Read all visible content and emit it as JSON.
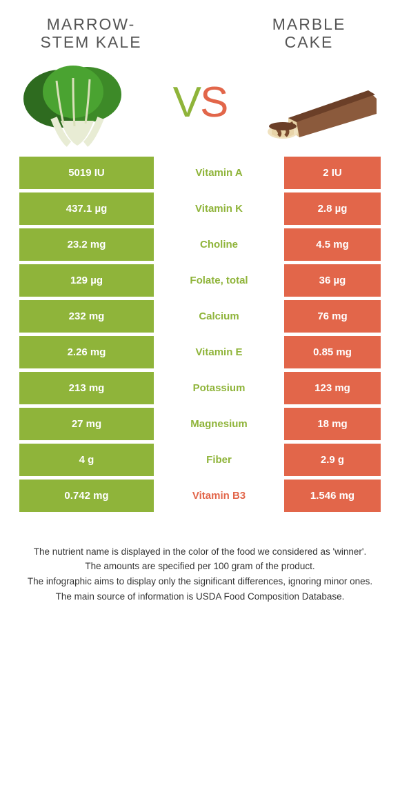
{
  "colors": {
    "left": "#8fb43a",
    "right": "#e2664a",
    "left_text": "#8fb43a",
    "right_text": "#e2664a",
    "title_text": "#555555",
    "body_text": "#333333",
    "white": "#ffffff"
  },
  "header": {
    "left_title_line1": "MARROW-",
    "left_title_line2": "STEM KALE",
    "right_title_line1": "MARBLE",
    "right_title_line2": "CAKE"
  },
  "vs": {
    "v": "V",
    "s": "S"
  },
  "rows": [
    {
      "left": "5019 IU",
      "label": "Vitamin A",
      "right": "2 IU",
      "winner": "left"
    },
    {
      "left": "437.1 µg",
      "label": "Vitamin K",
      "right": "2.8 µg",
      "winner": "left"
    },
    {
      "left": "23.2 mg",
      "label": "Choline",
      "right": "4.5 mg",
      "winner": "left"
    },
    {
      "left": "129 µg",
      "label": "Folate, total",
      "right": "36 µg",
      "winner": "left"
    },
    {
      "left": "232 mg",
      "label": "Calcium",
      "right": "76 mg",
      "winner": "left"
    },
    {
      "left": "2.26 mg",
      "label": "Vitamin E",
      "right": "0.85 mg",
      "winner": "left"
    },
    {
      "left": "213 mg",
      "label": "Potassium",
      "right": "123 mg",
      "winner": "left"
    },
    {
      "left": "27 mg",
      "label": "Magnesium",
      "right": "18 mg",
      "winner": "left"
    },
    {
      "left": "4 g",
      "label": "Fiber",
      "right": "2.9 g",
      "winner": "left"
    },
    {
      "left": "0.742 mg",
      "label": "Vitamin B3",
      "right": "1.546 mg",
      "winner": "right"
    }
  ],
  "footer": {
    "l1": "The nutrient name is displayed in the color of the food we considered as 'winner'.",
    "l2": "The amounts are specified per 100 gram of the product.",
    "l3": "The infographic aims to display only the significant differences, ignoring minor ones.",
    "l4": "The main source of information is USDA Food Composition Database."
  }
}
